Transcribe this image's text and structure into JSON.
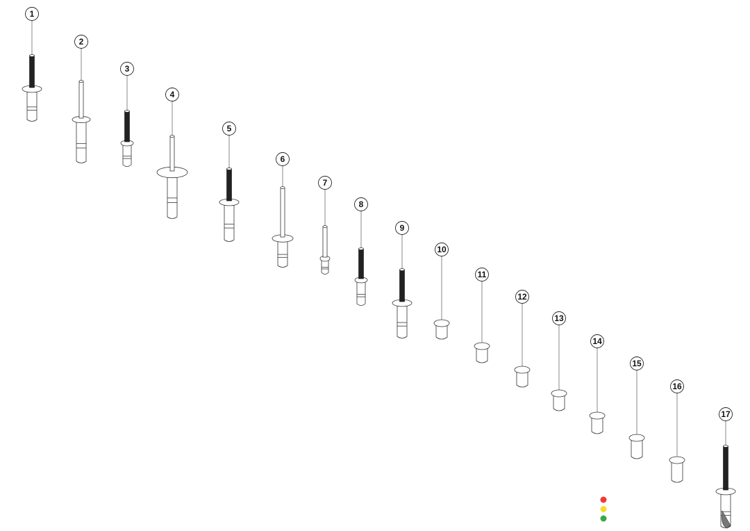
{
  "diagram": {
    "parts": [
      {
        "label": "1",
        "kind": "threaded-rivet"
      },
      {
        "label": "2",
        "kind": "plain-rivet"
      },
      {
        "label": "3",
        "kind": "threaded-rivet"
      },
      {
        "label": "4",
        "kind": "plain-rivet"
      },
      {
        "label": "5",
        "kind": "threaded-rivet"
      },
      {
        "label": "6",
        "kind": "plain-rivet"
      },
      {
        "label": "7",
        "kind": "plain-rivet"
      },
      {
        "label": "8",
        "kind": "threaded-rivet"
      },
      {
        "label": "9",
        "kind": "threaded-rivet"
      },
      {
        "label": "10",
        "kind": "cup"
      },
      {
        "label": "11",
        "kind": "cup"
      },
      {
        "label": "12",
        "kind": "cup"
      },
      {
        "label": "13",
        "kind": "cup"
      },
      {
        "label": "14",
        "kind": "cup"
      },
      {
        "label": "15",
        "kind": "cup"
      },
      {
        "label": "16",
        "kind": "cup"
      },
      {
        "label": "17",
        "kind": "threaded-rivet-cut"
      }
    ],
    "status_dots": [
      {
        "name": "red",
        "color": "#f03a2e"
      },
      {
        "name": "yellow",
        "color": "#f5dc2a"
      },
      {
        "name": "green",
        "color": "#3aa843"
      }
    ]
  }
}
